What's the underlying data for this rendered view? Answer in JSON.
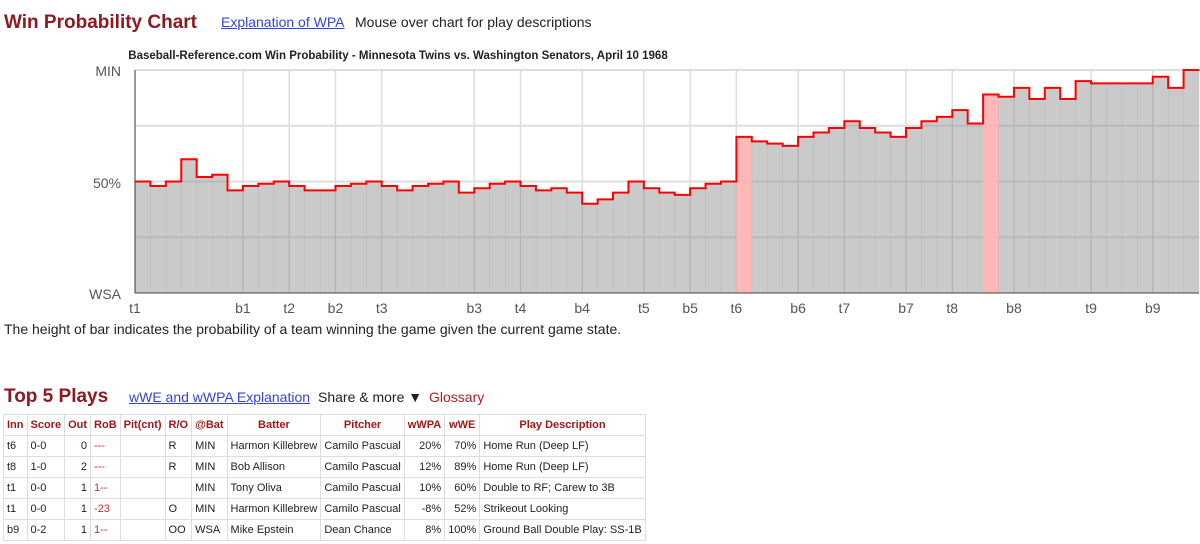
{
  "header": {
    "title": "Win Probability Chart",
    "explain_link": "Explanation of WPA",
    "hint": "Mouse over chart for play descriptions"
  },
  "chart_data": {
    "type": "area",
    "title": "Baseball-Reference.com Win Probability - Minnesota Twins vs. Washington Senators, April 10 1968",
    "y_labels": {
      "top": "MIN",
      "mid": "50%",
      "bottom": "WSA"
    },
    "ylim": [
      0,
      100
    ],
    "grid": true,
    "values": [
      50,
      48,
      50,
      60,
      52,
      53,
      46,
      48,
      49,
      50,
      48,
      46,
      46,
      48,
      49,
      50,
      48,
      46,
      48,
      49,
      50,
      45,
      47,
      49,
      50,
      48,
      46,
      47,
      45,
      40,
      42,
      45,
      50,
      47,
      45,
      44,
      47,
      49,
      50,
      70,
      68,
      67,
      66,
      70,
      72,
      74,
      77,
      74,
      72,
      70,
      74,
      77,
      79,
      82,
      76,
      89,
      88,
      92,
      87,
      92,
      87,
      95,
      94,
      94,
      94,
      94,
      97,
      92,
      100
    ],
    "highlight_indices": [
      39,
      55
    ],
    "innings": [
      {
        "label": "t1",
        "play": 0
      },
      {
        "label": "b1",
        "play": 7
      },
      {
        "label": "t2",
        "play": 10
      },
      {
        "label": "b2",
        "play": 13
      },
      {
        "label": "t3",
        "play": 16
      },
      {
        "label": "b3",
        "play": 22
      },
      {
        "label": "t4",
        "play": 25
      },
      {
        "label": "b4",
        "play": 29
      },
      {
        "label": "t5",
        "play": 33
      },
      {
        "label": "b5",
        "play": 36
      },
      {
        "label": "t6",
        "play": 39
      },
      {
        "label": "b6",
        "play": 43
      },
      {
        "label": "t7",
        "play": 46
      },
      {
        "label": "b7",
        "play": 50
      },
      {
        "label": "t8",
        "play": 53
      },
      {
        "label": "b8",
        "play": 57
      },
      {
        "label": "t9",
        "play": 62
      },
      {
        "label": "b9",
        "play": 66
      }
    ],
    "colors": {
      "line": "#ff0000",
      "fill": "#cccccc",
      "highlight": "#ffb0b0"
    }
  },
  "caption": "The height of bar indicates the probability of a team winning the game given the current game state.",
  "top_plays": {
    "title": "Top 5 Plays",
    "explain_link": "wWE and wWPA Explanation",
    "share": "Share & more ▼",
    "glossary": "Glossary",
    "columns": [
      "Inn",
      "Score",
      "Out",
      "RoB",
      "Pit(cnt)",
      "R/O",
      "@Bat",
      "Batter",
      "Pitcher",
      "wWPA",
      "wWE",
      "Play Description"
    ],
    "rows": [
      [
        "t6",
        "0-0",
        "0",
        "---",
        "",
        "R",
        "MIN",
        "Harmon Killebrew",
        "Camilo Pascual",
        "20%",
        "70%",
        "Home Run (Deep LF)"
      ],
      [
        "t8",
        "1-0",
        "2",
        "---",
        "",
        "R",
        "MIN",
        "Bob Allison",
        "Camilo Pascual",
        "12%",
        "89%",
        "Home Run (Deep LF)"
      ],
      [
        "t1",
        "0-0",
        "1",
        "1--",
        "",
        "",
        "MIN",
        "Tony Oliva",
        "Camilo Pascual",
        "10%",
        "60%",
        "Double to RF; Carew to 3B"
      ],
      [
        "t1",
        "0-0",
        "1",
        "-23",
        "",
        "O",
        "MIN",
        "Harmon Killebrew",
        "Camilo Pascual",
        "-8%",
        "52%",
        "Strikeout Looking"
      ],
      [
        "b9",
        "0-2",
        "1",
        "1--",
        "",
        "OO",
        "WSA",
        "Mike Epstein",
        "Dean Chance",
        "8%",
        "100%",
        "Ground Ball Double Play: SS-1B"
      ]
    ]
  }
}
